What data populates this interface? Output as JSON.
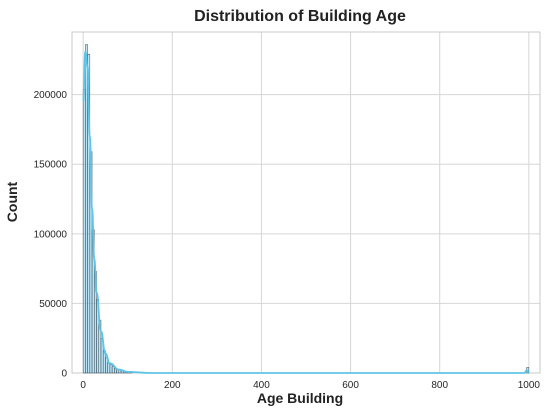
{
  "chart_data": {
    "type": "bar",
    "title": "Distribution of Building Age",
    "xlabel": "Age Building",
    "ylabel": "Count",
    "xlim": [
      -25,
      1025
    ],
    "ylim": [
      0,
      245000
    ],
    "x_ticks": [
      0,
      200,
      400,
      600,
      800,
      1000
    ],
    "y_ticks": [
      0,
      50000,
      100000,
      150000,
      200000
    ],
    "grid": true,
    "bin_width": 5,
    "bar_color": "#87ceeb",
    "kde_color": "#5ec5e8",
    "series": [
      {
        "values": [
          {
            "x": 0,
            "y": 204000
          },
          {
            "x": 5,
            "y": 236000
          },
          {
            "x": 10,
            "y": 229000
          },
          {
            "x": 15,
            "y": 159000
          },
          {
            "x": 20,
            "y": 103000
          },
          {
            "x": 25,
            "y": 73000
          },
          {
            "x": 30,
            "y": 53000
          },
          {
            "x": 35,
            "y": 38000
          },
          {
            "x": 40,
            "y": 25000
          },
          {
            "x": 45,
            "y": 16000
          },
          {
            "x": 50,
            "y": 11000
          },
          {
            "x": 55,
            "y": 7000
          },
          {
            "x": 60,
            "y": 6000
          },
          {
            "x": 65,
            "y": 4500
          },
          {
            "x": 70,
            "y": 3000
          },
          {
            "x": 75,
            "y": 2500
          },
          {
            "x": 80,
            "y": 2000
          },
          {
            "x": 85,
            "y": 1500
          },
          {
            "x": 90,
            "y": 1000
          },
          {
            "x": 95,
            "y": 800
          },
          {
            "x": 100,
            "y": 600
          },
          {
            "x": 105,
            "y": 400
          },
          {
            "x": 995,
            "y": 4000
          }
        ]
      }
    ],
    "kde": [
      {
        "x": 0,
        "y": 195000
      },
      {
        "x": 5,
        "y": 231000
      },
      {
        "x": 10,
        "y": 220000
      },
      {
        "x": 15,
        "y": 170000
      },
      {
        "x": 20,
        "y": 118000
      },
      {
        "x": 25,
        "y": 82000
      },
      {
        "x": 30,
        "y": 58000
      },
      {
        "x": 40,
        "y": 30000
      },
      {
        "x": 50,
        "y": 14000
      },
      {
        "x": 60,
        "y": 7000
      },
      {
        "x": 80,
        "y": 2500
      },
      {
        "x": 100,
        "y": 800
      },
      {
        "x": 150,
        "y": 0
      },
      {
        "x": 990,
        "y": 0
      },
      {
        "x": 995,
        "y": 2000
      },
      {
        "x": 1000,
        "y": 0
      }
    ]
  }
}
